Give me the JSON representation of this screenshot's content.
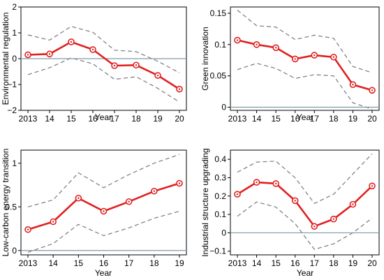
{
  "chart_data": [
    {
      "type": "line",
      "id": "env",
      "x_tick_labels": [
        "2013",
        "14",
        "15",
        "16",
        "17",
        "18",
        "19",
        "20"
      ],
      "xlabel": "Year",
      "ylabel": "Environmental regulation",
      "ylim": [
        -2,
        2
      ],
      "y_ticks": [
        -2,
        -1,
        0,
        1,
        2
      ],
      "y_tick_labels": [
        "−2",
        "−1",
        "0",
        "1",
        "2"
      ],
      "zero_line": true,
      "series": [
        {
          "role": "estimate",
          "values": [
            0.15,
            0.18,
            0.65,
            0.35,
            -0.27,
            -0.25,
            -0.65,
            -1.18
          ]
        },
        {
          "role": "upper",
          "values": [
            0.92,
            0.72,
            1.25,
            1.02,
            0.33,
            0.27,
            -0.1,
            -0.55
          ]
        },
        {
          "role": "lower",
          "values": [
            -0.62,
            -0.35,
            0.03,
            -0.2,
            -0.8,
            -0.7,
            -1.15,
            -1.68
          ]
        }
      ]
    },
    {
      "type": "line",
      "id": "green",
      "x_tick_labels": [
        "2013",
        "14",
        "15",
        "16",
        "17",
        "18",
        "19",
        "20"
      ],
      "xlabel": "Year",
      "ylabel": "Green innovation",
      "ylim": [
        -0.005,
        0.16
      ],
      "y_ticks": [
        0,
        0.05,
        0.1,
        0.15
      ],
      "y_tick_labels": [
        "0",
        "0.05",
        "0.1",
        "0.15"
      ],
      "zero_line": true,
      "series": [
        {
          "role": "estimate",
          "values": [
            0.107,
            0.1,
            0.095,
            0.077,
            0.083,
            0.08,
            0.036,
            0.027
          ]
        },
        {
          "role": "upper",
          "values": [
            0.155,
            0.13,
            0.128,
            0.108,
            0.115,
            0.11,
            0.065,
            0.055
          ]
        },
        {
          "role": "lower",
          "values": [
            0.06,
            0.07,
            0.062,
            0.046,
            0.052,
            0.05,
            0.007,
            -0.003
          ]
        }
      ]
    },
    {
      "type": "line",
      "id": "lowcarbon",
      "x_tick_labels": [
        "2013",
        "14",
        "15",
        "16",
        "17",
        "18",
        "19"
      ],
      "xlabel": "Year",
      "ylabel": "Low-carbon energy transition",
      "ylim": [
        -0.05,
        1.15
      ],
      "y_ticks": [
        0,
        0.5,
        1
      ],
      "y_tick_labels": [
        "0",
        "0.5",
        "1"
      ],
      "zero_line": true,
      "series": [
        {
          "role": "estimate",
          "values": [
            0.24,
            0.33,
            0.6,
            0.45,
            0.56,
            0.68,
            0.77
          ]
        },
        {
          "role": "upper",
          "values": [
            0.5,
            0.58,
            0.89,
            0.72,
            0.87,
            1.0,
            1.1
          ]
        },
        {
          "role": "lower",
          "values": [
            -0.02,
            0.08,
            0.3,
            0.17,
            0.26,
            0.37,
            0.45
          ]
        }
      ]
    },
    {
      "type": "line",
      "id": "industrial",
      "x_tick_labels": [
        "2013",
        "14",
        "15",
        "16",
        "17",
        "18",
        "19",
        "20"
      ],
      "xlabel": "Year",
      "ylabel": "Industrial structure upgrading",
      "ylim": [
        -0.12,
        0.45
      ],
      "y_ticks": [
        -0.1,
        0,
        0.1,
        0.2,
        0.3,
        0.4
      ],
      "y_tick_labels": [
        "−0.1",
        "0",
        "0.1",
        "0.2",
        "0.3",
        "0.4"
      ],
      "zero_line": true,
      "series": [
        {
          "role": "estimate",
          "values": [
            0.21,
            0.275,
            0.268,
            0.175,
            0.035,
            0.075,
            0.155,
            0.255
          ]
        },
        {
          "role": "upper",
          "values": [
            0.33,
            0.385,
            0.39,
            0.3,
            0.16,
            0.21,
            0.32,
            0.43
          ]
        },
        {
          "role": "lower",
          "values": [
            0.09,
            0.168,
            0.14,
            0.05,
            -0.09,
            -0.06,
            0.0,
            0.08
          ]
        }
      ]
    }
  ]
}
